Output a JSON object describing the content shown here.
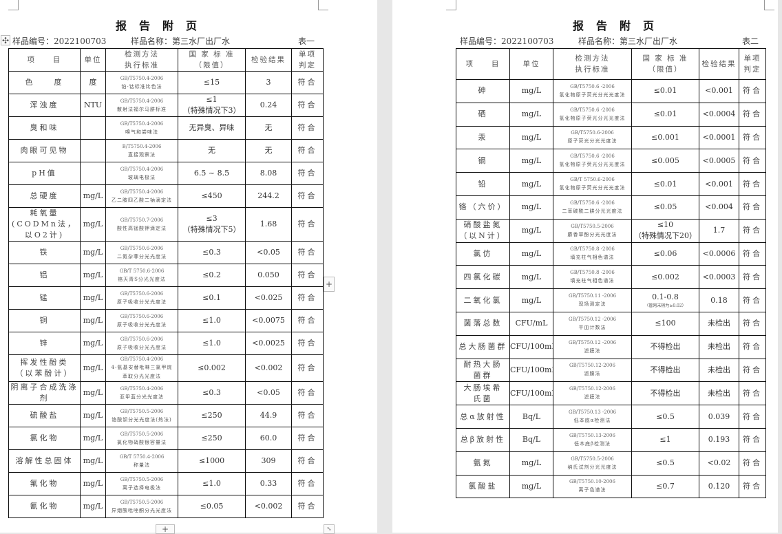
{
  "doc_title": "报告附页",
  "sample_no_label": "样品编号：",
  "sample_no": "2022100703",
  "sample_name_label": "样品名称：",
  "sample_name": "第三水厂出厂水",
  "headers": [
    "项　　目",
    "单位",
    "检测方法\n执行标准",
    "国 家 标 准\n（限值）",
    "检验结果",
    "单项\n判定"
  ],
  "pages": [
    {
      "table_label": "表一",
      "rows": [
        [
          "色　　度",
          "度",
          "GB/T5750.4-2006",
          "铂-钴标准比色法",
          "≤15",
          "3",
          "符合"
        ],
        [
          "浑浊度",
          "NTU",
          "GB/T5750.4-2006",
          "散射法福尔马肼标准",
          "≤1\n（特殊情况下3）",
          "0.24",
          "符合"
        ],
        [
          "臭和味",
          "",
          "GB/T5750.4-2006",
          "嗅气和尝味法",
          "无异臭、异味",
          "无",
          "符合"
        ],
        [
          "肉眼可见物",
          "",
          "B/T5750.4-2006",
          "直接观察法",
          "无",
          "无",
          "符合"
        ],
        [
          "pH值",
          "",
          "GB/T5750.4-2006",
          "玻璃电极法",
          "6.5 ~ 8.5",
          "8.08",
          "符合"
        ],
        [
          "总硬度",
          "mg/L",
          "GB/T5750.4-2006",
          "乙二胺四乙酸二钠滴定法",
          "≤450",
          "244.2",
          "符合"
        ],
        [
          "耗氧量\n(CODMn法，以O2计)",
          "mg/L",
          "GB/T5750.7-2006",
          "酸性高锰酸钾滴定法",
          "≤3\n（特殊情况下5）",
          "1.68",
          "符合"
        ],
        [
          "铁",
          "mg/L",
          "GB/T5750.6-2006",
          "二氮杂菲分光光度法",
          "≤0.3",
          "<0.05",
          "符合"
        ],
        [
          "铝",
          "mg/L",
          "GB/T 5750.6-2006",
          "铬天青S分光光度法",
          "≤0.2",
          "0.050",
          "符合"
        ],
        [
          "锰",
          "mg/L",
          "GB/T5750.6-2006",
          "原子吸收分光光度法",
          "≤0.1",
          "<0.025",
          "符合"
        ],
        [
          "铜",
          "mg/L",
          "GB/T5750.6-2006",
          "原子吸收分光光度法",
          "≤1.0",
          "<0.0075",
          "符合"
        ],
        [
          "锌",
          "mg/L",
          "GB/T5750.6-2006",
          "原子吸收分光光度法",
          "≤1.0",
          "<0.0025",
          "符合"
        ],
        [
          "挥发性酚类\n（以苯酚计）",
          "mg/L",
          "GB/T5750.4-2006",
          "4-氨基安替吡啉三氯甲烷\n萃取分光光度法",
          "≤0.002",
          "<0.002",
          "符合"
        ],
        [
          "阴离子合成洗涤剂",
          "mg/L",
          "GB/T5750.4-2006",
          "亚甲蓝分光光度法",
          "≤0.3",
          "<0.05",
          "符合"
        ],
        [
          "硫酸盐",
          "mg/L",
          "GB/T5750.5-2006",
          "铬酸钡分光光度法(热法)",
          "≤250",
          "44.9",
          "符合"
        ],
        [
          "氯化物",
          "mg/L",
          "GB/T5750.5-2006",
          "氯化物硝酸银容量法",
          "≤250",
          "60.0",
          "符合"
        ],
        [
          "溶解性总固体",
          "mg/L",
          "GB/T 5750.4-2006",
          "称量法",
          "≤1000",
          "309",
          "符合"
        ],
        [
          "氟化物",
          "mg/L",
          "GB/T5750.5-2006",
          "离子选择电极法",
          "≤1.0",
          "0.33",
          "符合"
        ],
        [
          "氰化物",
          "mg/L",
          "GB/T5750.5-2006",
          "异烟酸吡唑酮分光光度法",
          "≤0.05",
          "<0.002",
          "符合"
        ]
      ]
    },
    {
      "table_label": "表二",
      "rows": [
        [
          "砷",
          "mg/L",
          "GB/T5750.6 -2006",
          "氢化物原子荧光分光光度法",
          "≤0.01",
          "<0.001",
          "符合"
        ],
        [
          "硒",
          "mg/L",
          "GB/T5750.6 -2006",
          "氢化物原子荧光分光光度法",
          "≤0.01",
          "<0.0004",
          "符合"
        ],
        [
          "汞",
          "mg/L",
          "GB/T5750.6-2006",
          "原子荧光分光光度法",
          "≤0.001",
          "<0.0001",
          "符合"
        ],
        [
          "镉",
          "mg/L",
          "GB/T5750.6 -2006",
          "氢化物原子荧光分光光度法",
          "≤0.005",
          "<0.0005",
          "符合"
        ],
        [
          "铅",
          "mg/L",
          "GB/T 5750.6-2006",
          "氢化物原子荧光分光光度法",
          "≤0.01",
          "<0.001",
          "符合"
        ],
        [
          "铬（六价）",
          "mg/L",
          "GB/T5750.6 -2006",
          "二苯碳酰二肼分光光度法",
          "≤0.05",
          "<0.004",
          "符合"
        ],
        [
          "硝酸盐氮\n（以N计）",
          "mg/L",
          "GB/T5750.5-2006",
          "麝香草酚分光光度法",
          "≤10\n（特殊情况下20）",
          "1.7",
          "符合"
        ],
        [
          "氯仿",
          "mg/L",
          "GB/T5750.8 -2006",
          "填充柱气相色谱法",
          "≤0.06",
          "<0.0006",
          "符合"
        ],
        [
          "四氯化碳",
          "mg/L",
          "GB/T5750.8 -2006",
          "填充柱气相色谱法",
          "≤0.002",
          "<0.0003",
          "符合"
        ],
        [
          "二氧化氯",
          "mg/L",
          "GB/T5750.11 -2006",
          "现场测定法",
          "0.1-0.8",
          "0.18",
          "符合"
        ],
        [
          "菌落总数",
          "CFU/mL",
          "GB/T5750.12 -2006",
          "平皿计数法",
          "≤100",
          "未检出",
          "符合"
        ],
        [
          "总大肠菌群",
          "CFU/100mL",
          "GB/T5750.12 -2006",
          "滤膜法",
          "不得检出",
          "未检出",
          "符合"
        ],
        [
          "耐热大肠\n菌群",
          "CFU/100mL",
          "GB/T5750.12-2006",
          "滤膜法",
          "不得检出",
          "未检出",
          "符合"
        ],
        [
          "大肠埃希\n氏菌",
          "CFU/100mL",
          "GB/T5750.12-2006",
          "滤膜法",
          "不得检出",
          "未检出",
          "符合"
        ],
        [
          "总α放射性",
          "Bq/L",
          "GB/T5750.13 -2006",
          "低本底α检测法",
          "≤0.5",
          "0.039",
          "符合"
        ],
        [
          "总β放射性",
          "Bq/L",
          "GB/T5750.13-2006",
          "低本底β检测法",
          "≤1",
          "0.193",
          "符合"
        ],
        [
          "氨氮",
          "mg/L",
          "GB/T5750.5-2006",
          "纳氏试剂分光光度法",
          "≤0.5",
          "<0.02",
          "符合"
        ],
        [
          "氯酸盐",
          "mg/L",
          "GB/T5750.10-2006",
          "离子色谱法",
          "≤0.7",
          "0.120",
          "符合"
        ]
      ],
      "notes": {
        "9": "（管网末梢为≥0.02）"
      }
    }
  ]
}
